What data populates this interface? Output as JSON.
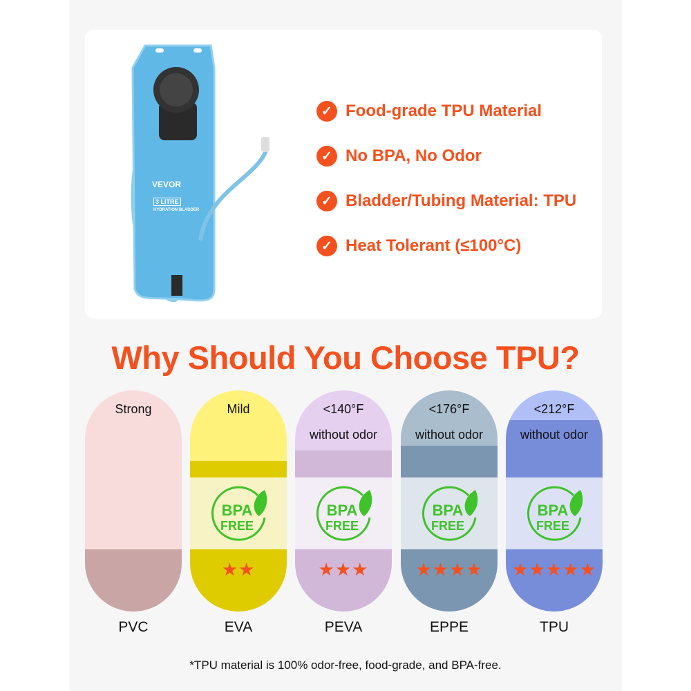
{
  "product": {
    "brand": "VEVOR",
    "capacity": "3 LITRE",
    "name": "HYDRATION BLADDER"
  },
  "features": [
    {
      "icon": "check-icon",
      "text": "Food-grade TPU Material"
    },
    {
      "icon": "check-icon",
      "text": "No BPA, No Odor"
    },
    {
      "icon": "check-icon",
      "text": "Bladder/Tubing Material: TPU"
    },
    {
      "icon": "check-icon",
      "text": "Heat Tolerant (≤100°C)"
    }
  ],
  "accent_color": "#f4511e",
  "heading": "Why Should You Choose TPU?",
  "materials": [
    {
      "name": "PVC",
      "odor": "Strong",
      "temp": "",
      "bpa_free": false,
      "stars": 0,
      "colors": {
        "top": "#f8dcdc",
        "band": "#c9a5a5",
        "light": "#f8dcdc"
      }
    },
    {
      "name": "EVA",
      "odor": "Mild",
      "temp": "",
      "bpa_free": true,
      "stars": 2,
      "colors": {
        "top": "#fff27a",
        "band": "#dfcc00",
        "light": "#f7f3c4"
      }
    },
    {
      "name": "PEVA",
      "odor": "without odor",
      "temp": "<140°F",
      "bpa_free": true,
      "stars": 3,
      "colors": {
        "top": "#e6d0f0",
        "band": "#d1b8d8",
        "light": "#f3eef5"
      }
    },
    {
      "name": "EPPE",
      "odor": "without odor",
      "temp": "<176°F",
      "bpa_free": true,
      "stars": 4,
      "colors": {
        "top": "#a9bdcd",
        "band": "#7b96b1",
        "light": "#dfe5ec"
      }
    },
    {
      "name": "TPU",
      "odor": "without odor",
      "temp": "<212°F",
      "bpa_free": true,
      "stars": 5,
      "colors": {
        "top": "#b0bff6",
        "band": "#788dda",
        "light": "#dde1f6"
      }
    }
  ],
  "badge": {
    "line1": "BPA",
    "line2": "FREE"
  },
  "footnote": "*TPU material is 100% odor-free, food-grade, and BPA-free."
}
